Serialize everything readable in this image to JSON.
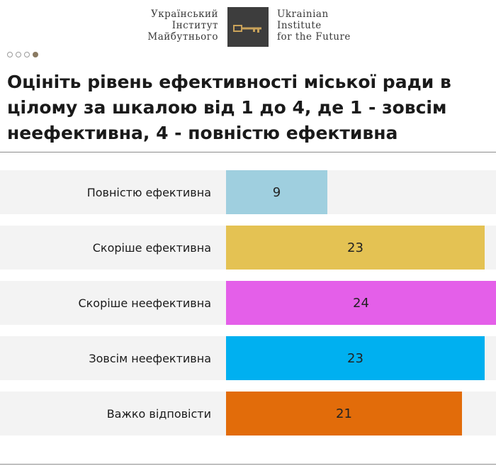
{
  "header": {
    "org_uk_lines": [
      "Український",
      "Інститут",
      "Майбутнього"
    ],
    "org_en_lines": [
      "Ukrainian",
      "Institute",
      "for the Future"
    ],
    "logo_icon": "key-icon"
  },
  "pagination": {
    "total": 4,
    "active_index": 3
  },
  "colors": {
    "accent": "#8a7a62",
    "row_background": "#f3f3f3",
    "bars": [
      "#9fcfdf",
      "#e4c253",
      "#e45fe9",
      "#00b0f0",
      "#e26c0a"
    ]
  },
  "chart_data": {
    "type": "bar",
    "orientation": "horizontal",
    "title": "Оцініть рівень ефективності міської ради в цілому за шкалою від 1 до 4, де 1 - зовсім неефективна, 4 - повністю ефективна",
    "categories": [
      "Повністю ефективна",
      "Скоріше ефективна",
      "Скоріше неефективна",
      "Зовсім неефективна",
      "Важко відповісти"
    ],
    "values": [
      9,
      23,
      24,
      23,
      21
    ],
    "data_labels": [
      "9",
      "23",
      "24",
      "23",
      "21"
    ],
    "xlim": [
      0,
      24
    ],
    "grid": false,
    "legend": "none"
  }
}
